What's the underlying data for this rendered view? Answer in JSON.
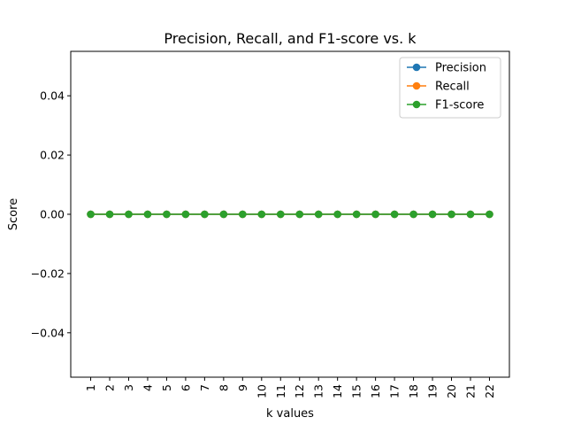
{
  "chart_data": {
    "type": "line",
    "title": "Precision, Recall, and F1-score vs. k",
    "xlabel": "k values",
    "ylabel": "Score",
    "x": [
      1,
      2,
      3,
      4,
      5,
      6,
      7,
      8,
      9,
      10,
      11,
      12,
      13,
      14,
      15,
      16,
      17,
      18,
      19,
      20,
      21,
      22
    ],
    "x_tick_labels": [
      "1",
      "2",
      "3",
      "4",
      "5",
      "6",
      "7",
      "8",
      "9",
      "10",
      "11",
      "12",
      "13",
      "14",
      "15",
      "16",
      "17",
      "18",
      "19",
      "20",
      "21",
      "22"
    ],
    "ylim": [
      -0.055,
      0.055
    ],
    "y_ticks": [
      -0.04,
      -0.02,
      0.0,
      0.02,
      0.04
    ],
    "y_tick_labels": [
      "−0.04",
      "−0.02",
      "0.00",
      "0.02",
      "0.04"
    ],
    "grid": false,
    "legend_position": "top-right",
    "series": [
      {
        "name": "Precision",
        "color": "#1f77b4",
        "marker": "circle",
        "values": [
          0,
          0,
          0,
          0,
          0,
          0,
          0,
          0,
          0,
          0,
          0,
          0,
          0,
          0,
          0,
          0,
          0,
          0,
          0,
          0,
          0,
          0
        ]
      },
      {
        "name": "Recall",
        "color": "#ff7f0e",
        "marker": "circle",
        "values": [
          0,
          0,
          0,
          0,
          0,
          0,
          0,
          0,
          0,
          0,
          0,
          0,
          0,
          0,
          0,
          0,
          0,
          0,
          0,
          0,
          0,
          0
        ]
      },
      {
        "name": "F1-score",
        "color": "#2ca02c",
        "marker": "circle",
        "values": [
          0,
          0,
          0,
          0,
          0,
          0,
          0,
          0,
          0,
          0,
          0,
          0,
          0,
          0,
          0,
          0,
          0,
          0,
          0,
          0,
          0,
          0
        ]
      }
    ]
  }
}
